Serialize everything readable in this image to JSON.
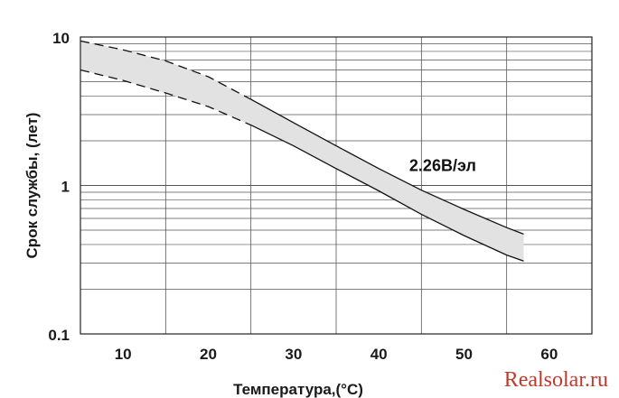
{
  "chart_data": {
    "type": "area",
    "xlabel": "Температура,(°C)",
    "ylabel": "Срок службы, (лет)",
    "y_scale": "log",
    "xlim": [
      5,
      65
    ],
    "ylim": [
      0.1,
      10
    ],
    "x_ticks": [
      "10",
      "20",
      "30",
      "40",
      "50",
      "60"
    ],
    "y_ticks": [
      "0.1",
      "1",
      "10"
    ],
    "grid": true,
    "band": {
      "x": [
        5,
        10,
        15,
        20,
        25,
        30,
        35,
        40,
        45,
        50,
        55,
        57
      ],
      "upper": [
        9.4,
        8.2,
        6.9,
        5.4,
        3.8,
        2.65,
        1.85,
        1.3,
        0.93,
        0.69,
        0.52,
        0.47
      ],
      "lower": [
        6.0,
        5.1,
        4.2,
        3.4,
        2.55,
        1.85,
        1.3,
        0.92,
        0.64,
        0.46,
        0.34,
        0.31
      ]
    },
    "annotations": [
      {
        "text": "2.26В/эл",
        "x": 47.5,
        "y": 1.25
      }
    ],
    "colors": {
      "band_fill": "#e2e2e2",
      "line": "#111111",
      "grid": "#555555"
    }
  },
  "watermark": "Realsolar.ru"
}
